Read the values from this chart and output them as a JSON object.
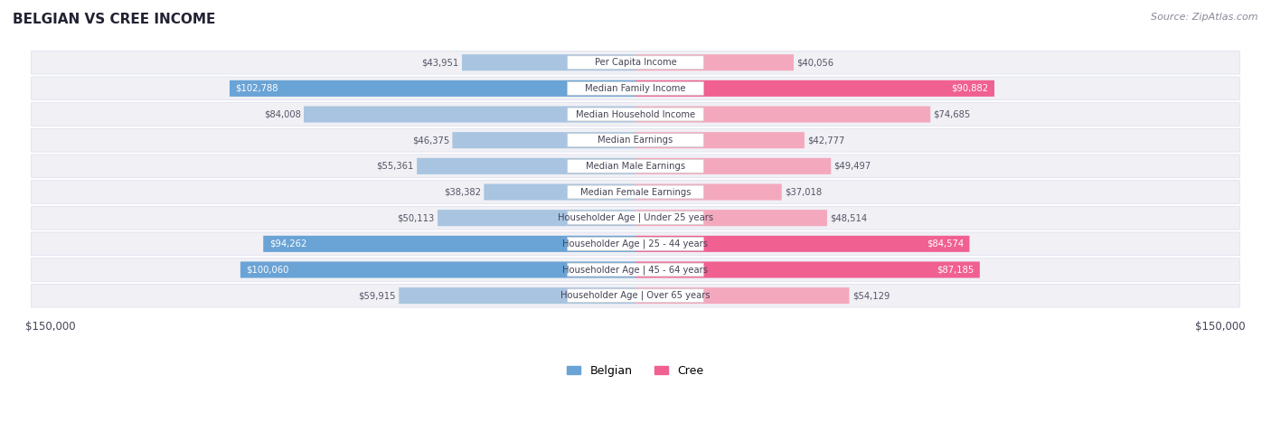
{
  "title": "BELGIAN VS CREE INCOME",
  "source": "Source: ZipAtlas.com",
  "categories": [
    "Per Capita Income",
    "Median Family Income",
    "Median Household Income",
    "Median Earnings",
    "Median Male Earnings",
    "Median Female Earnings",
    "Householder Age | Under 25 years",
    "Householder Age | 25 - 44 years",
    "Householder Age | 45 - 64 years",
    "Householder Age | Over 65 years"
  ],
  "belgian_values": [
    43951,
    102788,
    84008,
    46375,
    55361,
    38382,
    50113,
    94262,
    100060,
    59915
  ],
  "cree_values": [
    40056,
    90882,
    74685,
    42777,
    49497,
    37018,
    48514,
    84574,
    87185,
    54129
  ],
  "belgian_labels": [
    "$43,951",
    "$102,788",
    "$84,008",
    "$46,375",
    "$55,361",
    "$38,382",
    "$50,113",
    "$94,262",
    "$100,060",
    "$59,915"
  ],
  "cree_labels": [
    "$40,056",
    "$90,882",
    "$74,685",
    "$42,777",
    "$49,497",
    "$37,018",
    "$48,514",
    "$84,574",
    "$87,185",
    "$54,129"
  ],
  "max_value": 150000,
  "belgian_color_normal": "#a8c4e0",
  "belgian_color_highlight": "#6aa3d5",
  "cree_color_normal": "#f4a8be",
  "cree_color_highlight": "#f06090",
  "bg_row_color": "#f0f0f5",
  "label_bg_color": "#ffffff",
  "highlight_rows": [
    1,
    7,
    8
  ],
  "xlabel_left": "$150,000",
  "xlabel_right": "$150,000",
  "legend_belgian": "Belgian",
  "legend_cree": "Cree"
}
